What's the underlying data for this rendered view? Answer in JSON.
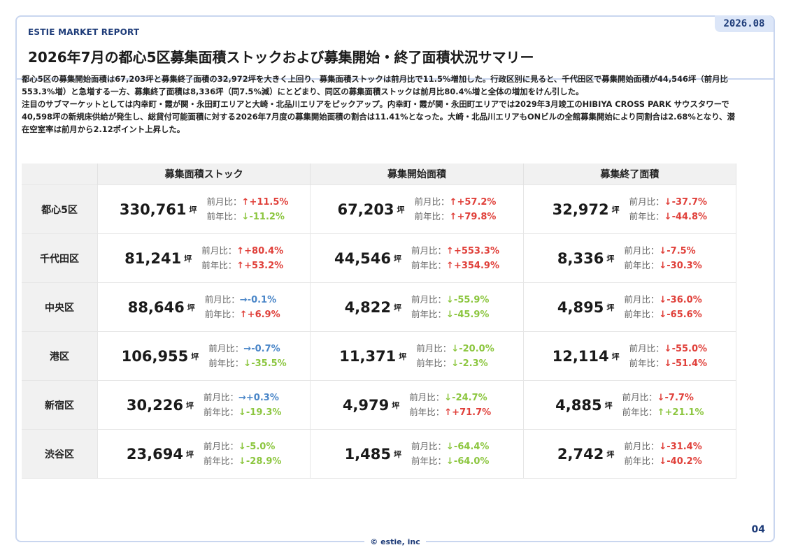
{
  "header": {
    "brand": "ESTIE MARKET REPORT",
    "date": "2026.08",
    "title": "2026年7月の都心5区募集面積ストックおよび募集開始・終了面積状況サマリー"
  },
  "summary": [
    "都心5区の募集開始面積は67,203坪と募集終了面積の32,972坪を大きく上回り、募集面積ストックは前月比で11.5%増加した。行政区別に見ると、千代田区で募集開始面積が44,546坪（前月比553.3%増）と急増する一方、募集終了面積は8,336坪（同7.5%減）にとどまり、同区の募集面積ストックは前月比80.4%増と全体の増加をけん引した。",
    "注目のサブマーケットとしては内幸町・霞が関・永田町エリアと大崎・北品川エリアをピックアップ。内幸町・霞が関・永田町エリアでは2029年3月竣工のHIBIYA CROSS PARK サウスタワーで40,598坪の新規床供給が発生し、総貸付可能面積に対する2026年7月度の募集開始面積の割合は11.41%となった。大崎・北品川エリアもONビルの全館募集開始により同割合は2.68%となり、潜在空室率は前月から2.12ポイント上昇した。"
  ],
  "table": {
    "columns": [
      "募集面積ストック",
      "募集開始面積",
      "募集終了面積"
    ],
    "unit": "坪",
    "mom_label": "前月比：",
    "yoy_label": "前年比：",
    "colors": {
      "up": "#e0403a",
      "down": "#8cc63f",
      "flat": "#4a86c8"
    },
    "rows": [
      {
        "ward": "都心5区",
        "cells": [
          {
            "value": "330,761",
            "mom": "+11.5%",
            "mom_dir": "up",
            "mom_color": "red",
            "yoy": "-11.2%",
            "yoy_dir": "down",
            "yoy_color": "green"
          },
          {
            "value": "67,203",
            "mom": "+57.2%",
            "mom_dir": "up",
            "mom_color": "red",
            "yoy": "+79.8%",
            "yoy_dir": "up",
            "yoy_color": "red"
          },
          {
            "value": "32,972",
            "mom": "-37.7%",
            "mom_dir": "down",
            "mom_color": "red",
            "yoy": "-44.8%",
            "yoy_dir": "down",
            "yoy_color": "red"
          }
        ]
      },
      {
        "ward": "千代田区",
        "cells": [
          {
            "value": "81,241",
            "mom": "+80.4%",
            "mom_dir": "up",
            "mom_color": "red",
            "yoy": "+53.2%",
            "yoy_dir": "up",
            "yoy_color": "red"
          },
          {
            "value": "44,546",
            "mom": "+553.3%",
            "mom_dir": "up",
            "mom_color": "red",
            "yoy": "+354.9%",
            "yoy_dir": "up",
            "yoy_color": "red"
          },
          {
            "value": "8,336",
            "mom": "-7.5%",
            "mom_dir": "down",
            "mom_color": "red",
            "yoy": "-30.3%",
            "yoy_dir": "down",
            "yoy_color": "red"
          }
        ]
      },
      {
        "ward": "中央区",
        "cells": [
          {
            "value": "88,646",
            "mom": "-0.1%",
            "mom_dir": "flat",
            "mom_color": "blue",
            "yoy": "+6.9%",
            "yoy_dir": "up",
            "yoy_color": "red"
          },
          {
            "value": "4,822",
            "mom": "-55.9%",
            "mom_dir": "down",
            "mom_color": "green",
            "yoy": "-45.9%",
            "yoy_dir": "down",
            "yoy_color": "green"
          },
          {
            "value": "4,895",
            "mom": "-36.0%",
            "mom_dir": "down",
            "mom_color": "red",
            "yoy": "-65.6%",
            "yoy_dir": "down",
            "yoy_color": "red"
          }
        ]
      },
      {
        "ward": "港区",
        "cells": [
          {
            "value": "106,955",
            "mom": "-0.7%",
            "mom_dir": "flat",
            "mom_color": "blue",
            "yoy": "-35.5%",
            "yoy_dir": "down",
            "yoy_color": "green"
          },
          {
            "value": "11,371",
            "mom": "-20.0%",
            "mom_dir": "down",
            "mom_color": "green",
            "yoy": "-2.3%",
            "yoy_dir": "down",
            "yoy_color": "green"
          },
          {
            "value": "12,114",
            "mom": "-55.0%",
            "mom_dir": "down",
            "mom_color": "red",
            "yoy": "-51.4%",
            "yoy_dir": "down",
            "yoy_color": "red"
          }
        ]
      },
      {
        "ward": "新宿区",
        "cells": [
          {
            "value": "30,226",
            "mom": "+0.3%",
            "mom_dir": "flat",
            "mom_color": "blue",
            "yoy": "-19.3%",
            "yoy_dir": "down",
            "yoy_color": "green"
          },
          {
            "value": "4,979",
            "mom": "-24.7%",
            "mom_dir": "down",
            "mom_color": "green",
            "yoy": "+71.7%",
            "yoy_dir": "up",
            "yoy_color": "red"
          },
          {
            "value": "4,885",
            "mom": "-7.7%",
            "mom_dir": "down",
            "mom_color": "red",
            "yoy": "+21.1%",
            "yoy_dir": "up",
            "yoy_color": "green"
          }
        ]
      },
      {
        "ward": "渋谷区",
        "cells": [
          {
            "value": "23,694",
            "mom": "-5.0%",
            "mom_dir": "down",
            "mom_color": "green",
            "yoy": "-28.9%",
            "yoy_dir": "down",
            "yoy_color": "green"
          },
          {
            "value": "1,485",
            "mom": "-64.4%",
            "mom_dir": "down",
            "mom_color": "green",
            "yoy": "-64.0%",
            "yoy_dir": "down",
            "yoy_color": "green"
          },
          {
            "value": "2,742",
            "mom": "-31.4%",
            "mom_dir": "down",
            "mom_color": "red",
            "yoy": "-40.2%",
            "yoy_dir": "down",
            "yoy_color": "red"
          }
        ]
      }
    ]
  },
  "footer": {
    "copyright": "© estie, inc",
    "page": "04"
  }
}
